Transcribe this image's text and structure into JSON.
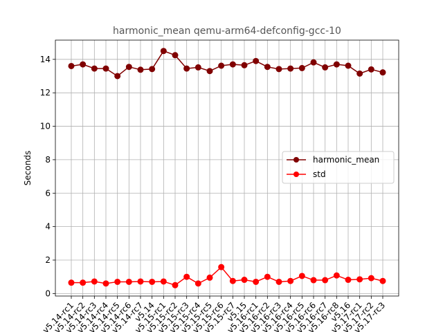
{
  "chart_data": {
    "type": "line",
    "title": "harmonic_mean qemu-arm64-defconfig-gcc-10",
    "xlabel": "",
    "ylabel": "Seconds",
    "ylim": [
      -0.15,
      15.15
    ],
    "yticks": [
      0,
      2,
      4,
      6,
      8,
      10,
      12,
      14
    ],
    "grid": true,
    "legend_position": "center-right",
    "categories": [
      "v5.14-rc1",
      "v5.14-rc2",
      "v5.14-rc3",
      "v5.14-rc4",
      "v5.14-rc5",
      "v5.14-rc6",
      "v5.14-rc7",
      "v5.14",
      "v5.15-rc1",
      "v5.15-rc2",
      "v5.15-rc3",
      "v5.15-rc4",
      "v5.15-rc5",
      "v5.15-rc6",
      "v5.15-rc7",
      "v5.15",
      "v5.16-rc1",
      "v5.16-rc2",
      "v5.16-rc3",
      "v5.16-rc4",
      "v5.16-rc5",
      "v5.16-rc6",
      "v5.16-rc7",
      "v5.16-rc8",
      "v5.16",
      "v5.17-rc1",
      "v5.17-rc2",
      "v5.17-rc3"
    ],
    "series": [
      {
        "name": "harmonic_mean",
        "color": "#800000",
        "values": [
          13.6,
          13.7,
          13.45,
          13.45,
          13.0,
          13.55,
          13.38,
          13.42,
          14.5,
          14.25,
          13.45,
          13.52,
          13.3,
          13.62,
          13.7,
          13.65,
          13.9,
          13.55,
          13.42,
          13.45,
          13.48,
          13.82,
          13.52,
          13.7,
          13.62,
          13.15,
          13.4,
          13.22
        ]
      },
      {
        "name": "std",
        "color": "#ff0000",
        "values": [
          0.65,
          0.65,
          0.72,
          0.6,
          0.7,
          0.7,
          0.72,
          0.7,
          0.72,
          0.5,
          1.0,
          0.6,
          0.95,
          1.58,
          0.75,
          0.82,
          0.7,
          1.0,
          0.7,
          0.75,
          1.05,
          0.8,
          0.8,
          1.08,
          0.82,
          0.85,
          0.92,
          0.75
        ]
      }
    ]
  }
}
